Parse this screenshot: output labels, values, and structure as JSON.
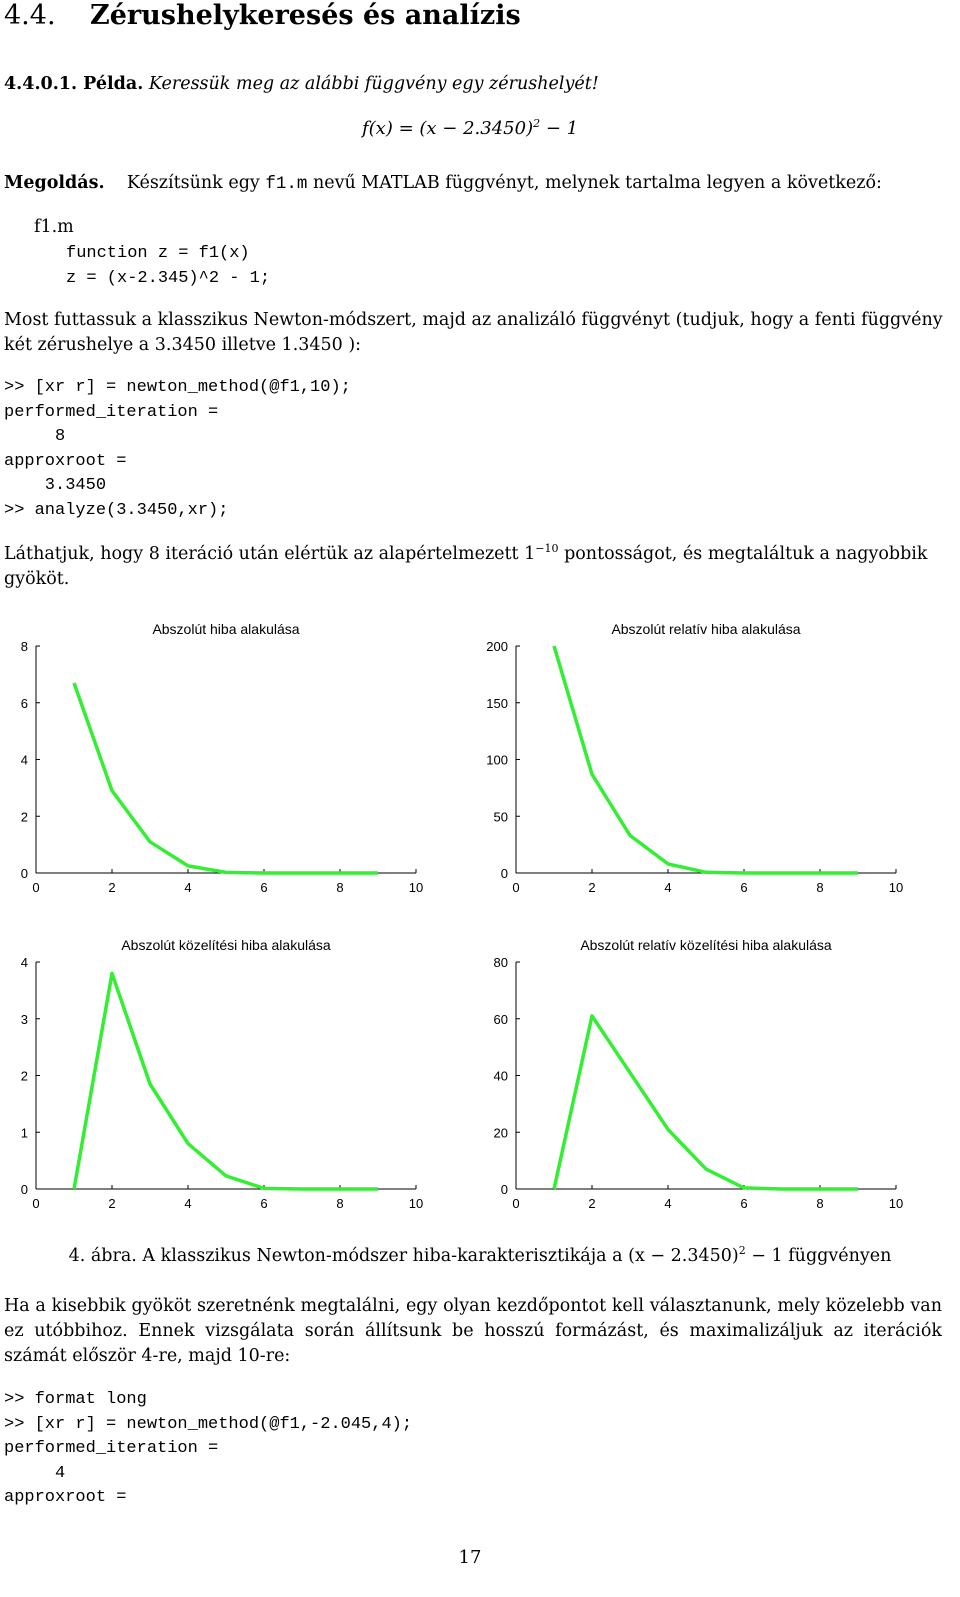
{
  "section": {
    "number": "4.4.",
    "title": "Zérushelykeresés és analízis"
  },
  "example": {
    "label": "4.4.0.1. Példa.",
    "text": "Keressük meg az alábbi függvény egy zérushelyét!"
  },
  "formula": {
    "left": "f(x) = (x − 2.3450)",
    "exponent": "2",
    "right": " − 1"
  },
  "solution": {
    "label": "Megoldás.",
    "text_before": "Készítsünk egy ",
    "code_name": "f1.m",
    "text_after": " nevű MATLAB függvényt, melynek tartalma legyen a következő:"
  },
  "file_name": "f1.m",
  "code1": "function z = f1(x)\nz = (x-2.345)^2 - 1;",
  "para1": "Most futtassuk a klasszikus Newton-módszert, majd az analizáló függvényt (tudjuk, hogy a fenti függvény két zérushelye a 3.3450 illetve 1.3450 ):",
  "code2": ">> [xr r] = newton_method(@f1,10);\nperformed_iteration =\n     8\napproxroot =\n    3.3450\n>> analyze(3.3450,xr);",
  "para2": {
    "before": "Láthatjuk, hogy 8 iteráció után elértük az alapértelmezett 1",
    "exponent": "−10",
    "after": " pontosságot, és megtaláltuk a nagyobbik gyököt."
  },
  "chart_data": [
    {
      "type": "line",
      "title": "Abszolút hiba alakulása",
      "x": [
        1,
        2,
        3,
        4,
        5,
        6,
        7,
        8,
        9
      ],
      "values": [
        6.7,
        2.9,
        1.1,
        0.25,
        0.02,
        0.0,
        0.0,
        0.0,
        0.0
      ],
      "xlim": [
        0,
        10
      ],
      "ylim": [
        0,
        8
      ],
      "xticks": [
        "0",
        "2",
        "4",
        "6",
        "8",
        "10"
      ],
      "yticks": [
        "0",
        "2",
        "4",
        "6",
        "8"
      ],
      "line_color": "#33ee33"
    },
    {
      "type": "line",
      "title": "Abszolút relatív hiba alakulása",
      "x": [
        1,
        2,
        3,
        4,
        5,
        6,
        7,
        8,
        9
      ],
      "values": [
        200,
        87,
        33,
        8,
        0.6,
        0.0,
        0.0,
        0.0,
        0.0
      ],
      "xlim": [
        0,
        10
      ],
      "ylim": [
        0,
        200
      ],
      "xticks": [
        "0",
        "2",
        "4",
        "6",
        "8",
        "10"
      ],
      "yticks": [
        "0",
        "50",
        "100",
        "150",
        "200"
      ],
      "line_color": "#33ee33"
    },
    {
      "type": "line",
      "title": "Abszolút közelítési hiba alakulása",
      "x": [
        1,
        2,
        3,
        4,
        5,
        6,
        7,
        8,
        9
      ],
      "values": [
        0.0,
        3.8,
        1.85,
        0.8,
        0.23,
        0.01,
        0.0,
        0.0,
        0.0
      ],
      "xlim": [
        0,
        10
      ],
      "ylim": [
        0,
        4
      ],
      "xticks": [
        "0",
        "2",
        "4",
        "6",
        "8",
        "10"
      ],
      "yticks": [
        "0",
        "1",
        "2",
        "3",
        "4"
      ],
      "line_color": "#33ee33"
    },
    {
      "type": "line",
      "title": "Abszolút relatív közelítési hiba alakulása",
      "x": [
        1,
        2,
        3,
        4,
        5,
        6,
        7,
        8,
        9
      ],
      "values": [
        0.0,
        61,
        41,
        21,
        7,
        0.4,
        0.0,
        0.0,
        0.0
      ],
      "xlim": [
        0,
        10
      ],
      "ylim": [
        0,
        80
      ],
      "xticks": [
        "0",
        "2",
        "4",
        "6",
        "8",
        "10"
      ],
      "yticks": [
        "0",
        "20",
        "40",
        "60",
        "80"
      ],
      "line_color": "#33ee33"
    }
  ],
  "caption": {
    "before": "4. ábra. A klasszikus Newton-módszer hiba-karakterisztikája a (x − 2.3450)",
    "exponent": "2",
    "after": " − 1 függvényen"
  },
  "para3": "Ha a kisebbik gyököt szeretnénk megtalálni, egy olyan kezdőpontot kell választanunk, mely közelebb van ez utóbbihoz. Ennek vizsgálata során állítsunk be hosszú formázást, és maximalizáljuk az iterációk számát először 4-re, majd 10-re:",
  "code3": ">> format long\n>> [xr r] = newton_method(@f1,-2.045,4);\nperformed_iteration =\n     4\napproxroot =",
  "page_number": "17"
}
